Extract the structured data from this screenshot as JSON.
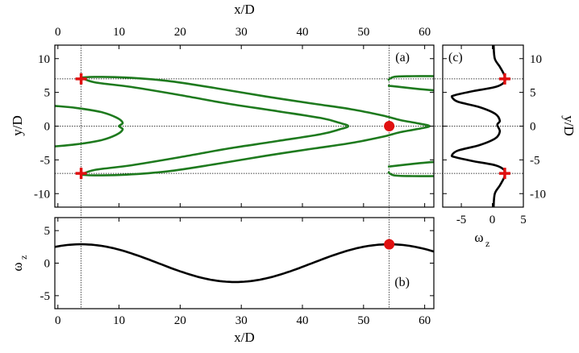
{
  "chart_data": [
    {
      "panel_label": "(a)",
      "type": "line",
      "xlabel": "x/D",
      "ylabel": "y/D",
      "xticks": [
        "0",
        "10",
        "20",
        "30",
        "40",
        "50",
        "60"
      ],
      "yticks": [
        "10",
        "5",
        "0",
        "-5",
        "-10"
      ],
      "xlim": [
        -0.5,
        61.5
      ],
      "ylim": [
        -12,
        12
      ],
      "contours": [
        {
          "name": "",
          "color": "#1e7a1e",
          "points": [
            [
              3.8,
              7.2
            ],
            [
              6,
              7.3
            ],
            [
              11,
              7.2
            ],
            [
              18,
              6.7
            ],
            [
              26,
              5.6
            ],
            [
              34,
              4.4
            ],
            [
              42,
              3.3
            ],
            [
              48,
              2.5
            ],
            [
              53,
              1.6
            ],
            [
              56,
              0.9
            ],
            [
              59,
              0.4
            ],
            [
              60.8,
              0.0
            ],
            [
              59,
              -0.4
            ],
            [
              56,
              -0.9
            ],
            [
              53,
              -1.6
            ],
            [
              48,
              -2.5
            ],
            [
              42,
              -3.3
            ],
            [
              34,
              -4.4
            ],
            [
              26,
              -5.6
            ],
            [
              18,
              -6.7
            ],
            [
              11,
              -7.2
            ],
            [
              6,
              -7.3
            ],
            [
              3.8,
              -7.2
            ]
          ]
        },
        {
          "name": "",
          "color": "#1e7a1e",
          "points": [
            [
              3.8,
              7.2
            ],
            [
              6,
              6.5
            ],
            [
              12,
              5.8
            ],
            [
              20,
              4.6
            ],
            [
              28,
              3.3
            ],
            [
              36,
              2.2
            ],
            [
              43,
              1.2
            ],
            [
              46,
              0.5
            ],
            [
              47.5,
              0.0
            ],
            [
              46,
              -0.5
            ],
            [
              43,
              -1.2
            ],
            [
              36,
              -2.2
            ],
            [
              28,
              -3.3
            ],
            [
              20,
              -4.6
            ],
            [
              12,
              -5.8
            ],
            [
              6,
              -6.5
            ],
            [
              3.8,
              -7.2
            ]
          ]
        },
        {
          "name": "",
          "color": "#1e7a1e",
          "points": [
            [
              -0.5,
              3.0
            ],
            [
              3,
              2.7
            ],
            [
              7,
              2.1
            ],
            [
              9.5,
              1.3
            ],
            [
              10.6,
              0.5
            ],
            [
              10.0,
              0.0
            ],
            [
              10.6,
              -0.5
            ],
            [
              9.5,
              -1.3
            ],
            [
              7,
              -2.1
            ],
            [
              3,
              -2.7
            ],
            [
              -0.5,
              -3.0
            ]
          ]
        },
        {
          "name": "",
          "color": "#1e7a1e",
          "points": [
            [
              54,
              6.8
            ],
            [
              55,
              7.3
            ],
            [
              58,
              7.4
            ],
            [
              61.5,
              7.4
            ]
          ]
        },
        {
          "name": "",
          "color": "#1e7a1e",
          "points": [
            [
              54,
              6.0
            ],
            [
              56,
              5.8
            ],
            [
              59,
              5.5
            ],
            [
              61.5,
              5.3
            ]
          ]
        },
        {
          "name": "",
          "color": "#1e7a1e",
          "points": [
            [
              54,
              -6.8
            ],
            [
              55,
              -7.3
            ],
            [
              58,
              -7.4
            ],
            [
              61.5,
              -7.4
            ]
          ]
        },
        {
          "name": "",
          "color": "#1e7a1e",
          "points": [
            [
              54,
              -6.0
            ],
            [
              56,
              -5.8
            ],
            [
              59,
              -5.5
            ],
            [
              61.5,
              -5.3
            ]
          ]
        }
      ],
      "ref_lines_h": [
        7.0,
        0.0,
        -7.0
      ],
      "ref_lines_v": [
        3.8,
        54.2
      ],
      "crosses": [
        [
          3.8,
          7.0
        ],
        [
          3.8,
          -7.0
        ]
      ],
      "dots": [
        [
          54.2,
          0.0
        ]
      ]
    },
    {
      "panel_label": "(b)",
      "type": "line",
      "xlabel": "x/D",
      "ylabel": "ω",
      "ylabel_sub": "z",
      "xticks": [
        "0",
        "10",
        "20",
        "30",
        "40",
        "50",
        "60"
      ],
      "yticks": [
        "5",
        "0",
        "-5"
      ],
      "xlim": [
        -0.5,
        61.5
      ],
      "ylim": [
        -7,
        7
      ],
      "series": [
        {
          "name": "",
          "color": "#000000",
          "function": "2.9*cos(2*pi*(x-3.8)/50.4)"
        }
      ],
      "ref_lines_v": [
        3.8,
        54.2
      ],
      "dots": [
        [
          54.2,
          2.9
        ]
      ]
    },
    {
      "panel_label": "(c)",
      "type": "line",
      "xlabel": "ω",
      "xlabel_sub": "z",
      "ylabel": "y/D",
      "xticks": [
        "-5",
        "0",
        "5"
      ],
      "yticks": [
        "10",
        "5",
        "0",
        "-5",
        "-10"
      ],
      "xlim": [
        -8,
        5
      ],
      "ylim": [
        -12,
        12
      ],
      "series": [
        {
          "name": "",
          "color": "#000000",
          "points": [
            [
              0.2,
              12
            ],
            [
              0.4,
              10
            ],
            [
              1.2,
              8.8
            ],
            [
              2.0,
              7.4
            ],
            [
              1.9,
              6.5
            ],
            [
              0.5,
              5.8
            ],
            [
              -3,
              5.2
            ],
            [
              -6,
              4.6
            ],
            [
              -6.5,
              4.3
            ],
            [
              -5.5,
              3.6
            ],
            [
              -2,
              2.8
            ],
            [
              0.5,
              1.8
            ],
            [
              1.2,
              0.8
            ],
            [
              0.8,
              0.2
            ],
            [
              1.2,
              -0.8
            ],
            [
              0.5,
              -1.8
            ],
            [
              -2,
              -2.8
            ],
            [
              -5.5,
              -3.6
            ],
            [
              -6.5,
              -4.3
            ],
            [
              -6,
              -4.6
            ],
            [
              -3,
              -5.2
            ],
            [
              0.5,
              -5.8
            ],
            [
              1.9,
              -6.5
            ],
            [
              2.0,
              -7.4
            ],
            [
              1.2,
              -8.8
            ],
            [
              0.4,
              -10
            ],
            [
              0.2,
              -12
            ]
          ]
        }
      ],
      "ref_lines_h": [
        7.0,
        -7.0
      ],
      "crosses": [
        [
          2.0,
          7.0
        ],
        [
          2.0,
          -7.0
        ]
      ]
    }
  ],
  "colors": {
    "contour": "#1e7a1e",
    "marker": "#e01010",
    "curve": "#000000"
  }
}
